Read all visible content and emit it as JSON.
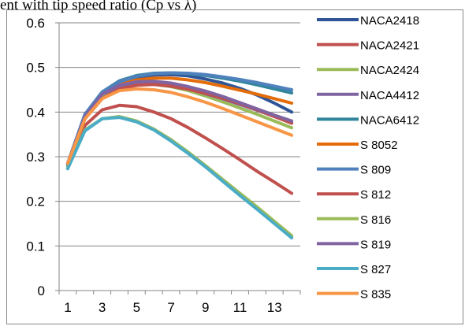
{
  "caption": "ent with tip speed ratio (Cp vs λ)",
  "chart_data": {
    "type": "line",
    "x": [
      1,
      2,
      3,
      4,
      5,
      6,
      7,
      8,
      9,
      10,
      11,
      12,
      13,
      14
    ],
    "xticks": [
      1,
      3,
      5,
      7,
      9,
      11,
      13
    ],
    "ylim": [
      0,
      0.6
    ],
    "yticks": [
      0,
      0.1,
      0.2,
      0.3,
      0.4,
      0.5,
      0.6
    ],
    "ytick_labels": [
      "0",
      "0.1",
      "0.2",
      "0.3",
      "0.4",
      "0.5",
      "0.6"
    ],
    "grid": "horizontal",
    "legend": "right",
    "series": [
      {
        "name": "NACA2418",
        "color": "#2f5597",
        "values": [
          0.285,
          0.395,
          0.44,
          0.465,
          0.478,
          0.483,
          0.484,
          0.481,
          0.474,
          0.465,
          0.453,
          0.438,
          0.42,
          0.4
        ]
      },
      {
        "name": "NACA2421",
        "color": "#c0504d",
        "values": [
          0.285,
          0.37,
          0.405,
          0.415,
          0.412,
          0.4,
          0.385,
          0.365,
          0.342,
          0.318,
          0.293,
          0.267,
          0.243,
          0.218
        ]
      },
      {
        "name": "NACA2424",
        "color": "#9bbb59",
        "values": [
          0.285,
          0.385,
          0.435,
          0.455,
          0.462,
          0.462,
          0.457,
          0.448,
          0.436,
          0.423,
          0.409,
          0.395,
          0.38,
          0.365
        ]
      },
      {
        "name": "NACA4412",
        "color": "#8064a2",
        "values": [
          0.285,
          0.39,
          0.44,
          0.458,
          0.465,
          0.465,
          0.46,
          0.452,
          0.441,
          0.43,
          0.417,
          0.404,
          0.39,
          0.377
        ]
      },
      {
        "name": "NACA6412",
        "color": "#31859c",
        "values": [
          0.28,
          0.395,
          0.445,
          0.47,
          0.482,
          0.487,
          0.488,
          0.486,
          0.482,
          0.476,
          0.469,
          0.461,
          0.452,
          0.443
        ]
      },
      {
        "name": "S 8052",
        "color": "#e46c0a",
        "values": [
          0.285,
          0.39,
          0.44,
          0.462,
          0.472,
          0.476,
          0.476,
          0.472,
          0.466,
          0.458,
          0.449,
          0.44,
          0.43,
          0.42
        ]
      },
      {
        "name": "S 809",
        "color": "#4f81bd",
        "values": [
          0.285,
          0.395,
          0.445,
          0.468,
          0.48,
          0.486,
          0.488,
          0.487,
          0.484,
          0.479,
          0.473,
          0.466,
          0.458,
          0.45
        ]
      },
      {
        "name": "S 812",
        "color": "#c0504d",
        "values": [
          0.285,
          0.385,
          0.43,
          0.452,
          0.46,
          0.462,
          0.458,
          0.451,
          0.442,
          0.431,
          0.419,
          0.405,
          0.39,
          0.375
        ]
      },
      {
        "name": "S 816",
        "color": "#9bbb59",
        "values": [
          0.275,
          0.36,
          0.385,
          0.39,
          0.38,
          0.362,
          0.338,
          0.31,
          0.28,
          0.249,
          0.218,
          0.187,
          0.155,
          0.123
        ]
      },
      {
        "name": "S 819",
        "color": "#8064a2",
        "values": [
          0.285,
          0.39,
          0.44,
          0.46,
          0.468,
          0.469,
          0.465,
          0.457,
          0.447,
          0.435,
          0.421,
          0.407,
          0.393,
          0.38
        ]
      },
      {
        "name": "S 827",
        "color": "#4bacc6",
        "values": [
          0.273,
          0.358,
          0.385,
          0.388,
          0.378,
          0.36,
          0.335,
          0.307,
          0.277,
          0.245,
          0.213,
          0.182,
          0.15,
          0.118
        ]
      },
      {
        "name": "S 835",
        "color": "#f79646",
        "values": [
          0.285,
          0.385,
          0.43,
          0.448,
          0.452,
          0.45,
          0.444,
          0.434,
          0.422,
          0.408,
          0.393,
          0.378,
          0.363,
          0.348
        ]
      }
    ]
  }
}
